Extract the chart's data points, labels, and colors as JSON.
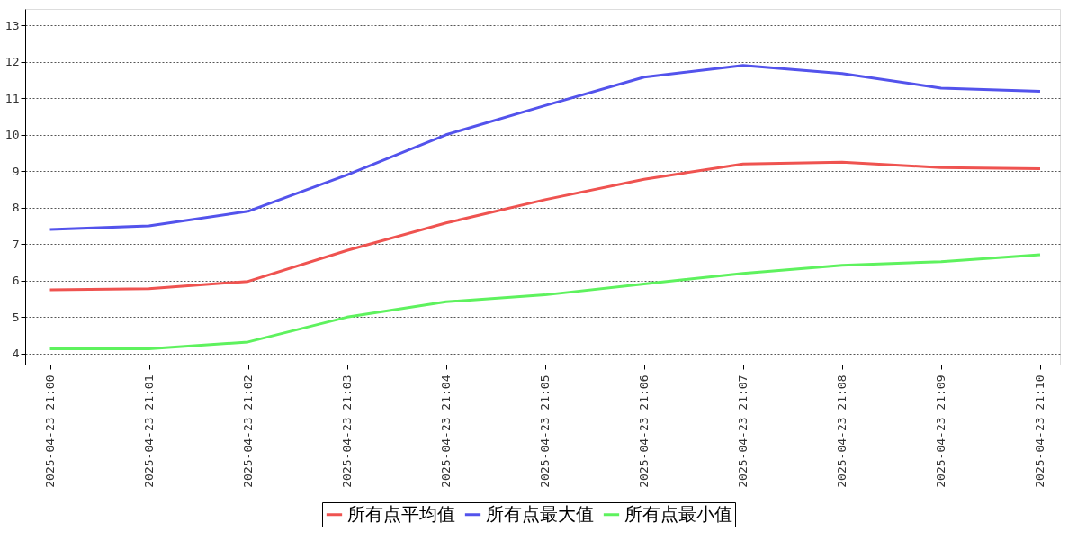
{
  "chart_data": {
    "type": "line",
    "categories": [
      "2025-04-23  21:00",
      "2025-04-23  21:01",
      "2025-04-23  21:02",
      "2025-04-23  21:03",
      "2025-04-23  21:04",
      "2025-04-23  21:05",
      "2025-04-23  21:06",
      "2025-04-23  21:07",
      "2025-04-23  21:08",
      "2025-04-23  21:09",
      "2025-04-23  21:10"
    ],
    "series": [
      {
        "name": "所有点平均值",
        "color": "#ef5350",
        "values": [
          5.75,
          5.78,
          5.98,
          6.83,
          7.58,
          8.22,
          8.78,
          9.2,
          9.25,
          9.1,
          9.07
        ]
      },
      {
        "name": "所有点最大值",
        "color": "#5353ec",
        "values": [
          7.4,
          7.5,
          7.9,
          8.9,
          10.0,
          10.8,
          11.58,
          11.9,
          11.68,
          11.28,
          11.19
        ]
      },
      {
        "name": "所有点最小值",
        "color": "#5ef25e",
        "values": [
          4.13,
          4.13,
          4.32,
          5.0,
          5.42,
          5.61,
          5.91,
          6.2,
          6.42,
          6.52,
          6.71
        ]
      }
    ],
    "ylim": [
      3.7,
      13.45
    ],
    "yticks": [
      4,
      5,
      6,
      7,
      8,
      9,
      10,
      11,
      12,
      13
    ],
    "grid": "y",
    "legend": "bottom",
    "marker": "none",
    "line_style": "solid"
  }
}
